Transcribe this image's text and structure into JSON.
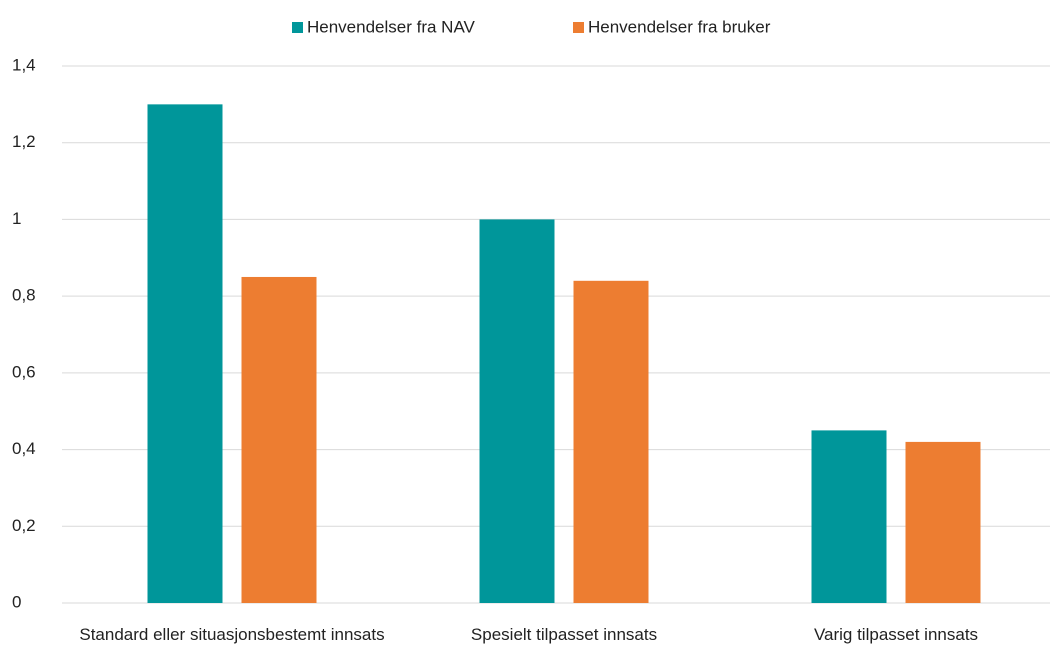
{
  "chart_data": {
    "type": "bar",
    "categories": [
      "Standard eller situasjonsbestemt innsats",
      "Spesielt tilpasset innsats",
      "Varig tilpasset innsats"
    ],
    "series": [
      {
        "name": "Henvendelser fra NAV",
        "color": "#00969a",
        "values": [
          1.3,
          1.0,
          0.45
        ]
      },
      {
        "name": "Henvendelser fra bruker",
        "color": "#ed7d31",
        "values": [
          0.85,
          0.84,
          0.42
        ]
      }
    ],
    "ylim": [
      0,
      1.4
    ],
    "yticks": [
      0,
      {
        "value": 0.2,
        "label": "0,2"
      },
      {
        "value": 0.4,
        "label": "0,4"
      },
      {
        "value": 0.6,
        "label": "0,6"
      },
      {
        "value": 0.8,
        "label": "0,8"
      },
      1,
      {
        "value": 1.2,
        "label": "1,2"
      },
      {
        "value": 1.4,
        "label": "1,4"
      }
    ],
    "grid": true,
    "legend": "top"
  }
}
